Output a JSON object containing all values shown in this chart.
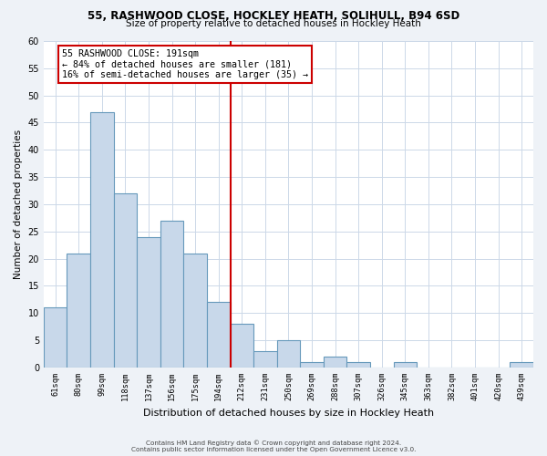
{
  "title1": "55, RASHWOOD CLOSE, HOCKLEY HEATH, SOLIHULL, B94 6SD",
  "title2": "Size of property relative to detached houses in Hockley Heath",
  "xlabel": "Distribution of detached houses by size in Hockley Heath",
  "ylabel": "Number of detached properties",
  "bar_labels": [
    "61sqm",
    "80sqm",
    "99sqm",
    "118sqm",
    "137sqm",
    "156sqm",
    "175sqm",
    "194sqm",
    "212sqm",
    "231sqm",
    "250sqm",
    "269sqm",
    "288sqm",
    "307sqm",
    "326sqm",
    "345sqm",
    "363sqm",
    "382sqm",
    "401sqm",
    "420sqm",
    "439sqm"
  ],
  "bar_values": [
    11,
    21,
    47,
    32,
    24,
    27,
    21,
    12,
    8,
    3,
    5,
    1,
    2,
    1,
    0,
    1,
    0,
    0,
    0,
    0,
    1
  ],
  "bar_color": "#c8d8ea",
  "bar_edge_color": "#6699bb",
  "vline_x": 7.5,
  "vline_color": "#cc0000",
  "annotation_title": "55 RASHWOOD CLOSE: 191sqm",
  "annotation_line1": "← 84% of detached houses are smaller (181)",
  "annotation_line2": "16% of semi-detached houses are larger (35) →",
  "annotation_box_color": "#cc0000",
  "ylim": [
    0,
    60
  ],
  "yticks": [
    0,
    5,
    10,
    15,
    20,
    25,
    30,
    35,
    40,
    45,
    50,
    55,
    60
  ],
  "footer1": "Contains HM Land Registry data © Crown copyright and database right 2024.",
  "footer2": "Contains public sector information licensed under the Open Government Licence v3.0.",
  "bg_color": "#eef2f7",
  "plot_bg_color": "#ffffff",
  "grid_color": "#ccd8e8"
}
